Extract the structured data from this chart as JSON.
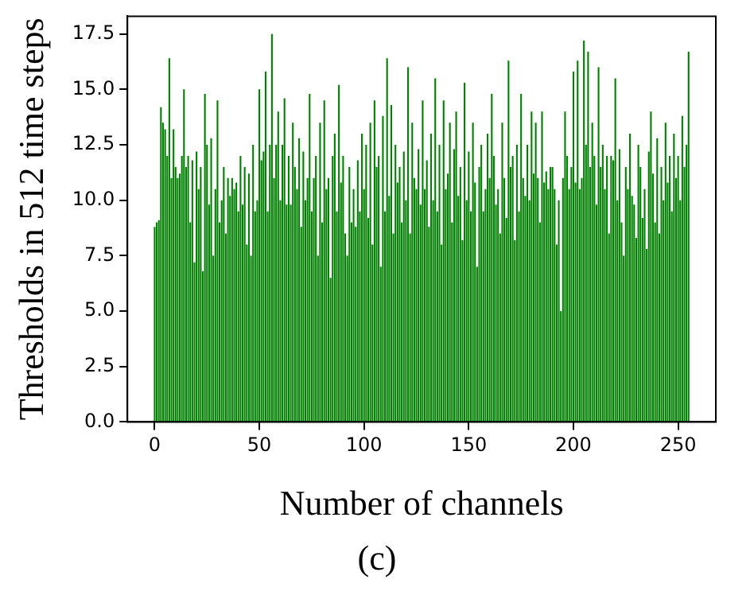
{
  "chart_data": {
    "type": "bar",
    "xlabel": "Number of channels",
    "ylabel": "Thresholds in 512 time steps",
    "annotations": [
      "(c)"
    ],
    "x": [
      0,
      1,
      2,
      3,
      4,
      5,
      6,
      7,
      8,
      9,
      10,
      11,
      12,
      13,
      14,
      15,
      16,
      17,
      18,
      19,
      20,
      21,
      22,
      23,
      24,
      25,
      26,
      27,
      28,
      29,
      30,
      31,
      32,
      33,
      34,
      35,
      36,
      37,
      38,
      39,
      40,
      41,
      42,
      43,
      44,
      45,
      46,
      47,
      48,
      49,
      50,
      51,
      52,
      53,
      54,
      55,
      56,
      57,
      58,
      59,
      60,
      61,
      62,
      63,
      64,
      65,
      66,
      67,
      68,
      69,
      70,
      71,
      72,
      73,
      74,
      75,
      76,
      77,
      78,
      79,
      80,
      81,
      82,
      83,
      84,
      85,
      86,
      87,
      88,
      89,
      90,
      91,
      92,
      93,
      94,
      95,
      96,
      97,
      98,
      99,
      100,
      101,
      102,
      103,
      104,
      105,
      106,
      107,
      108,
      109,
      110,
      111,
      112,
      113,
      114,
      115,
      116,
      117,
      118,
      119,
      120,
      121,
      122,
      123,
      124,
      125,
      126,
      127,
      128,
      129,
      130,
      131,
      132,
      133,
      134,
      135,
      136,
      137,
      138,
      139,
      140,
      141,
      142,
      143,
      144,
      145,
      146,
      147,
      148,
      149,
      150,
      151,
      152,
      153,
      154,
      155,
      156,
      157,
      158,
      159,
      160,
      161,
      162,
      163,
      164,
      165,
      166,
      167,
      168,
      169,
      170,
      171,
      172,
      173,
      174,
      175,
      176,
      177,
      178,
      179,
      180,
      181,
      182,
      183,
      184,
      185,
      186,
      187,
      188,
      189,
      190,
      191,
      192,
      193,
      194,
      195,
      196,
      197,
      198,
      199,
      200,
      201,
      202,
      203,
      204,
      205,
      206,
      207,
      208,
      209,
      210,
      211,
      212,
      213,
      214,
      215,
      216,
      217,
      218,
      219,
      220,
      221,
      222,
      223,
      224,
      225,
      226,
      227,
      228,
      229,
      230,
      231,
      232,
      233,
      234,
      235,
      236,
      237,
      238,
      239,
      240,
      241,
      242,
      243,
      244,
      245,
      246,
      247,
      248,
      249,
      250,
      251,
      252,
      253,
      254,
      255
    ],
    "values": [
      8.8,
      9.0,
      9.1,
      14.2,
      13.5,
      13.2,
      12.0,
      16.4,
      11.0,
      13.2,
      11.5,
      11.0,
      11.2,
      12.0,
      15.0,
      11.5,
      12.0,
      9.0,
      11.8,
      7.2,
      12.2,
      10.5,
      11.5,
      6.8,
      14.8,
      12.5,
      9.8,
      12.8,
      7.5,
      10.5,
      14.5,
      9.0,
      10.0,
      11.5,
      8.5,
      11.0,
      10.2,
      11.0,
      10.5,
      10.8,
      9.5,
      12.0,
      9.8,
      11.5,
      8.0,
      11.2,
      7.5,
      12.5,
      9.5,
      10.0,
      15.0,
      11.8,
      12.2,
      15.8,
      9.5,
      12.5,
      17.5,
      11.0,
      12.5,
      14.0,
      10.0,
      12.5,
      14.6,
      9.8,
      12.0,
      9.8,
      13.5,
      11.5,
      10.5,
      12.8,
      8.8,
      12.2,
      10.0,
      11.0,
      14.8,
      9.5,
      11.0,
      12.0,
      7.5,
      13.5,
      9.0,
      14.5,
      10.5,
      11.0,
      6.5,
      12.0,
      13.0,
      9.5,
      15.2,
      10.8,
      12.0,
      8.5,
      7.5,
      11.5,
      9.0,
      10.5,
      8.8,
      11.8,
      9.5,
      13.0,
      10.5,
      12.5,
      9.2,
      13.5,
      8.0,
      14.5,
      11.5,
      12.0,
      7.0,
      13.8,
      9.5,
      16.4,
      10.2,
      14.3,
      8.5,
      12.5,
      10.8,
      11.5,
      9.0,
      12.2,
      10.0,
      16.0,
      8.5,
      13.5,
      11.0,
      10.5,
      12.3,
      9.8,
      14.5,
      10.5,
      11.8,
      8.8,
      13.0,
      10.0,
      15.5,
      9.5,
      12.5,
      8.0,
      14.5,
      10.5,
      11.2,
      13.5,
      9.0,
      12.3,
      14.0,
      10.2,
      11.5,
      8.2,
      15.3,
      10.0,
      12.2,
      9.5,
      13.5,
      10.8,
      7.0,
      11.5,
      12.5,
      9.5,
      10.5,
      13.0,
      11.0,
      14.8,
      12.0,
      9.8,
      10.5,
      8.5,
      13.5,
      11.0,
      9.2,
      16.3,
      11.5,
      12.0,
      8.2,
      12.5,
      9.5,
      14.8,
      11.0,
      10.2,
      12.5,
      10.0,
      14.0,
      11.2,
      13.5,
      11.0,
      9.0,
      14.0,
      10.8,
      11.3,
      10.5,
      11.5,
      11.5,
      10.5,
      8.0,
      10.0,
      5.0,
      11.0,
      14.0,
      12.0,
      10.5,
      11.5,
      15.8,
      10.8,
      16.3,
      10.5,
      11.0,
      17.2,
      12.5,
      16.7,
      11.5,
      13.5,
      12.0,
      9.8,
      16.0,
      11.5,
      12.5,
      10.5,
      12.0,
      8.5,
      12.0,
      11.8,
      15.5,
      10.0,
      12.3,
      9.0,
      7.5,
      11.5,
      10.5,
      13.0,
      10.2,
      9.8,
      8.3,
      12.5,
      11.5,
      9.2,
      10.5,
      7.8,
      12.2,
      14.0,
      11.2,
      9.0,
      12.8,
      8.5,
      11.5,
      10.0,
      13.5,
      10.8,
      12.0,
      9.5,
      13.0,
      11.0,
      12.0,
      10.0,
      13.8,
      11.5,
      12.5,
      16.7
    ],
    "color": "#008000",
    "xlim": [
      -13,
      268
    ],
    "xticks": [
      0,
      50,
      100,
      150,
      200,
      250
    ],
    "ylim": [
      0,
      18.3
    ],
    "yticks": [
      {
        "value": 0,
        "label": "0.0"
      },
      {
        "value": 2.5,
        "label": "2.5"
      },
      {
        "value": 5,
        "label": "5.0"
      },
      {
        "value": 7.5,
        "label": "7.5"
      },
      {
        "value": 10,
        "label": "10.0"
      },
      {
        "value": 12.5,
        "label": "12.5"
      },
      {
        "value": 15,
        "label": "15.0"
      },
      {
        "value": 17.5,
        "label": "17.5"
      }
    ],
    "grid": false,
    "legend": false
  }
}
